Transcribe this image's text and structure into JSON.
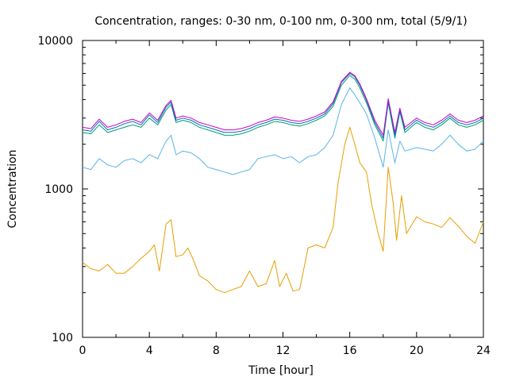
{
  "chart_data": {
    "type": "line",
    "title": "Concentration, ranges: 0-30 nm, 0-100 nm, 0-300 nm, total (5/9/1)",
    "xlabel": "Time [hour]",
    "ylabel": "Concentration",
    "xlim": [
      0,
      24
    ],
    "ylim": [
      100,
      10000
    ],
    "yscale": "log",
    "x_ticks": [
      "0",
      "4",
      "8",
      "12",
      "16",
      "20",
      "24"
    ],
    "y_ticks": [
      "100",
      "1000",
      "10000"
    ],
    "grid": false,
    "legend": "none",
    "series": [
      {
        "color": "#e69f00",
        "points": [
          [
            0,
            320
          ],
          [
            0.5,
            290
          ],
          [
            1,
            280
          ],
          [
            1.5,
            310
          ],
          [
            2,
            270
          ],
          [
            2.5,
            270
          ],
          [
            3,
            300
          ],
          [
            3.5,
            340
          ],
          [
            4,
            380
          ],
          [
            4.3,
            420
          ],
          [
            4.6,
            280
          ],
          [
            5,
            580
          ],
          [
            5.3,
            620
          ],
          [
            5.6,
            350
          ],
          [
            6,
            360
          ],
          [
            6.3,
            400
          ],
          [
            6.6,
            340
          ],
          [
            7,
            260
          ],
          [
            7.5,
            240
          ],
          [
            8,
            210
          ],
          [
            8.5,
            200
          ],
          [
            9,
            210
          ],
          [
            9.5,
            220
          ],
          [
            10,
            280
          ],
          [
            10.5,
            220
          ],
          [
            11,
            230
          ],
          [
            11.5,
            330
          ],
          [
            11.8,
            220
          ],
          [
            12.2,
            270
          ],
          [
            12.6,
            205
          ],
          [
            13,
            210
          ],
          [
            13.5,
            400
          ],
          [
            14,
            420
          ],
          [
            14.5,
            400
          ],
          [
            15,
            550
          ],
          [
            15.3,
            1100
          ],
          [
            15.7,
            2000
          ],
          [
            16,
            2600
          ],
          [
            16.3,
            2000
          ],
          [
            16.6,
            1500
          ],
          [
            17,
            1300
          ],
          [
            17.3,
            800
          ],
          [
            17.7,
            500
          ],
          [
            18,
            380
          ],
          [
            18.3,
            1400
          ],
          [
            18.6,
            800
          ],
          [
            18.8,
            450
          ],
          [
            19.1,
            900
          ],
          [
            19.4,
            500
          ],
          [
            20,
            650
          ],
          [
            20.5,
            600
          ],
          [
            21,
            580
          ],
          [
            21.5,
            550
          ],
          [
            22,
            640
          ],
          [
            22.5,
            560
          ],
          [
            23,
            480
          ],
          [
            23.5,
            430
          ],
          [
            24,
            600
          ]
        ]
      },
      {
        "color": "#56b4e9",
        "points": [
          [
            0,
            1400
          ],
          [
            0.5,
            1350
          ],
          [
            1,
            1600
          ],
          [
            1.5,
            1450
          ],
          [
            2,
            1400
          ],
          [
            2.5,
            1550
          ],
          [
            3,
            1600
          ],
          [
            3.5,
            1500
          ],
          [
            4,
            1700
          ],
          [
            4.5,
            1600
          ],
          [
            5,
            2100
          ],
          [
            5.3,
            2300
          ],
          [
            5.6,
            1700
          ],
          [
            6,
            1800
          ],
          [
            6.5,
            1750
          ],
          [
            7,
            1600
          ],
          [
            7.5,
            1400
          ],
          [
            8,
            1350
          ],
          [
            8.5,
            1300
          ],
          [
            9,
            1250
          ],
          [
            9.5,
            1300
          ],
          [
            10,
            1350
          ],
          [
            10.5,
            1600
          ],
          [
            11,
            1650
          ],
          [
            11.5,
            1700
          ],
          [
            12,
            1600
          ],
          [
            12.5,
            1650
          ],
          [
            13,
            1500
          ],
          [
            13.5,
            1650
          ],
          [
            14,
            1700
          ],
          [
            14.5,
            1900
          ],
          [
            15,
            2300
          ],
          [
            15.5,
            3700
          ],
          [
            16,
            4800
          ],
          [
            16.3,
            4300
          ],
          [
            16.6,
            3800
          ],
          [
            17,
            3200
          ],
          [
            17.5,
            2200
          ],
          [
            18,
            1400
          ],
          [
            18.3,
            2500
          ],
          [
            18.7,
            1500
          ],
          [
            19,
            2100
          ],
          [
            19.3,
            1800
          ],
          [
            20,
            1900
          ],
          [
            20.5,
            1850
          ],
          [
            21,
            1800
          ],
          [
            21.5,
            2000
          ],
          [
            22,
            2300
          ],
          [
            22.5,
            2000
          ],
          [
            23,
            1800
          ],
          [
            23.5,
            1850
          ],
          [
            24,
            2100
          ]
        ]
      },
      {
        "color": "#009e73",
        "points": [
          [
            0,
            2400
          ],
          [
            0.5,
            2350
          ],
          [
            1,
            2700
          ],
          [
            1.5,
            2400
          ],
          [
            2,
            2500
          ],
          [
            2.5,
            2600
          ],
          [
            3,
            2700
          ],
          [
            3.5,
            2600
          ],
          [
            4,
            3000
          ],
          [
            4.5,
            2700
          ],
          [
            5,
            3400
          ],
          [
            5.3,
            3700
          ],
          [
            5.6,
            2800
          ],
          [
            6,
            2900
          ],
          [
            6.5,
            2800
          ],
          [
            7,
            2600
          ],
          [
            7.5,
            2500
          ],
          [
            8,
            2400
          ],
          [
            8.5,
            2300
          ],
          [
            9,
            2300
          ],
          [
            9.5,
            2350
          ],
          [
            10,
            2450
          ],
          [
            10.5,
            2600
          ],
          [
            11,
            2700
          ],
          [
            11.5,
            2850
          ],
          [
            12,
            2800
          ],
          [
            12.5,
            2700
          ],
          [
            13,
            2650
          ],
          [
            13.5,
            2750
          ],
          [
            14,
            2900
          ],
          [
            14.5,
            3100
          ],
          [
            15,
            3600
          ],
          [
            15.5,
            5000
          ],
          [
            16,
            5800
          ],
          [
            16.3,
            5500
          ],
          [
            16.6,
            4800
          ],
          [
            17,
            3800
          ],
          [
            17.5,
            2700
          ],
          [
            18,
            2100
          ],
          [
            18.3,
            3800
          ],
          [
            18.7,
            2200
          ],
          [
            19,
            3300
          ],
          [
            19.3,
            2400
          ],
          [
            20,
            2800
          ],
          [
            20.5,
            2600
          ],
          [
            21,
            2500
          ],
          [
            21.5,
            2700
          ],
          [
            22,
            3000
          ],
          [
            22.5,
            2700
          ],
          [
            23,
            2600
          ],
          [
            23.5,
            2700
          ],
          [
            24,
            2900
          ]
        ]
      },
      {
        "color": "#0072b2",
        "points": [
          [
            0,
            2500
          ],
          [
            0.5,
            2450
          ],
          [
            1,
            2850
          ],
          [
            1.5,
            2500
          ],
          [
            2,
            2600
          ],
          [
            2.5,
            2750
          ],
          [
            3,
            2850
          ],
          [
            3.5,
            2700
          ],
          [
            4,
            3150
          ],
          [
            4.5,
            2800
          ],
          [
            5,
            3550
          ],
          [
            5.3,
            3850
          ],
          [
            5.6,
            2900
          ],
          [
            6,
            3000
          ],
          [
            6.5,
            2900
          ],
          [
            7,
            2700
          ],
          [
            7.5,
            2600
          ],
          [
            8,
            2500
          ],
          [
            8.5,
            2400
          ],
          [
            9,
            2400
          ],
          [
            9.5,
            2450
          ],
          [
            10,
            2550
          ],
          [
            10.5,
            2700
          ],
          [
            11,
            2800
          ],
          [
            11.5,
            2950
          ],
          [
            12,
            2900
          ],
          [
            12.5,
            2800
          ],
          [
            13,
            2750
          ],
          [
            13.5,
            2850
          ],
          [
            14,
            3000
          ],
          [
            14.5,
            3200
          ],
          [
            15,
            3750
          ],
          [
            15.5,
            5200
          ],
          [
            16,
            6000
          ],
          [
            16.3,
            5700
          ],
          [
            16.6,
            5000
          ],
          [
            17,
            3950
          ],
          [
            17.5,
            2800
          ],
          [
            18,
            2200
          ],
          [
            18.3,
            3950
          ],
          [
            18.7,
            2300
          ],
          [
            19,
            3400
          ],
          [
            19.3,
            2500
          ],
          [
            20,
            2900
          ],
          [
            20.5,
            2700
          ],
          [
            21,
            2600
          ],
          [
            21.5,
            2800
          ],
          [
            22,
            3100
          ],
          [
            22.5,
            2800
          ],
          [
            23,
            2700
          ],
          [
            23.5,
            2800
          ],
          [
            24,
            3000
          ]
        ]
      },
      {
        "color": "#cc00cc",
        "points": [
          [
            0,
            2600
          ],
          [
            0.5,
            2550
          ],
          [
            1,
            2950
          ],
          [
            1.5,
            2600
          ],
          [
            2,
            2700
          ],
          [
            2.5,
            2850
          ],
          [
            3,
            2950
          ],
          [
            3.5,
            2800
          ],
          [
            4,
            3250
          ],
          [
            4.5,
            2900
          ],
          [
            5,
            3650
          ],
          [
            5.3,
            3950
          ],
          [
            5.6,
            3000
          ],
          [
            6,
            3100
          ],
          [
            6.5,
            3000
          ],
          [
            7,
            2800
          ],
          [
            7.5,
            2700
          ],
          [
            8,
            2600
          ],
          [
            8.5,
            2500
          ],
          [
            9,
            2500
          ],
          [
            9.5,
            2550
          ],
          [
            10,
            2650
          ],
          [
            10.5,
            2800
          ],
          [
            11,
            2900
          ],
          [
            11.5,
            3050
          ],
          [
            12,
            3000
          ],
          [
            12.5,
            2900
          ],
          [
            13,
            2850
          ],
          [
            13.5,
            2950
          ],
          [
            14,
            3100
          ],
          [
            14.5,
            3300
          ],
          [
            15,
            3850
          ],
          [
            15.5,
            5300
          ],
          [
            16,
            6100
          ],
          [
            16.3,
            5800
          ],
          [
            16.6,
            5100
          ],
          [
            17,
            4050
          ],
          [
            17.5,
            2900
          ],
          [
            18,
            2300
          ],
          [
            18.3,
            4050
          ],
          [
            18.7,
            2400
          ],
          [
            19,
            3500
          ],
          [
            19.3,
            2600
          ],
          [
            20,
            3000
          ],
          [
            20.5,
            2800
          ],
          [
            21,
            2700
          ],
          [
            21.5,
            2900
          ],
          [
            22,
            3200
          ],
          [
            22.5,
            2900
          ],
          [
            23,
            2800
          ],
          [
            23.5,
            2900
          ],
          [
            24,
            3100
          ]
        ]
      }
    ]
  }
}
